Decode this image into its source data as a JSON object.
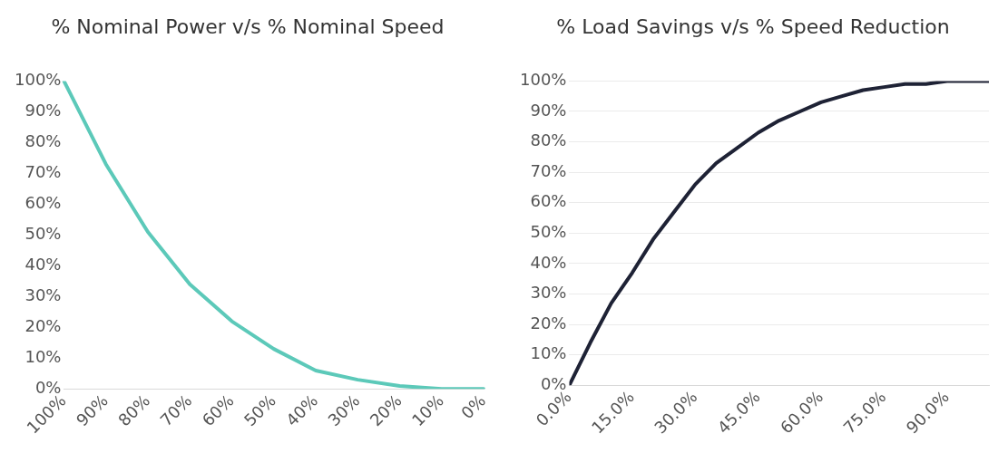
{
  "chart_data": [
    {
      "type": "line",
      "title": "% Nominal Power v/s % Nominal Speed",
      "categories": [
        "100%",
        "90%",
        "80%",
        "70%",
        "60%",
        "50%",
        "40%",
        "30%",
        "20%",
        "10%",
        "0%"
      ],
      "values": [
        100,
        73,
        51,
        34,
        22,
        13,
        6,
        3,
        1,
        0,
        0
      ],
      "color": "#5cc9b9",
      "ylim": [
        0,
        100
      ],
      "yticks": [
        {
          "value": 0,
          "label": "0%"
        },
        {
          "value": 10,
          "label": "10%"
        },
        {
          "value": 20,
          "label": "20%"
        },
        {
          "value": 30,
          "label": "30%"
        },
        {
          "value": 40,
          "label": "40%"
        },
        {
          "value": 50,
          "label": "50%"
        },
        {
          "value": 60,
          "label": "60%"
        },
        {
          "value": 70,
          "label": "70%"
        },
        {
          "value": 80,
          "label": "80%"
        },
        {
          "value": 90,
          "label": "90%"
        },
        {
          "value": 100,
          "label": "100%"
        }
      ],
      "grid": false,
      "marker": "none"
    },
    {
      "type": "line",
      "title": "% Load Savings v/s % Speed Reduction",
      "x": [
        0,
        5,
        10,
        15,
        20,
        25,
        30,
        35,
        40,
        45,
        50,
        55,
        60,
        65,
        70,
        75,
        80,
        85,
        90,
        95,
        100
      ],
      "values": [
        0,
        14,
        27,
        37,
        48,
        57,
        66,
        73,
        78,
        83,
        87,
        90,
        93,
        95,
        97,
        98,
        99,
        99,
        100,
        100,
        100
      ],
      "color": "#1e2235",
      "xlim": [
        0,
        100
      ],
      "xticks": [
        {
          "value": 0,
          "label": "0.0%"
        },
        {
          "value": 15,
          "label": "15.0%"
        },
        {
          "value": 30,
          "label": "30.0%"
        },
        {
          "value": 45,
          "label": "45.0%"
        },
        {
          "value": 60,
          "label": "60.0%"
        },
        {
          "value": 75,
          "label": "75.0%"
        },
        {
          "value": 90,
          "label": "90.0%"
        }
      ],
      "ylim": [
        0,
        100
      ],
      "yticks": [
        {
          "value": 0,
          "label": "0%"
        },
        {
          "value": 10,
          "label": "10%"
        },
        {
          "value": 20,
          "label": "20%"
        },
        {
          "value": 30,
          "label": "30%"
        },
        {
          "value": 40,
          "label": "40%"
        },
        {
          "value": 50,
          "label": "50%"
        },
        {
          "value": 60,
          "label": "60%"
        },
        {
          "value": 70,
          "label": "70%"
        },
        {
          "value": 80,
          "label": "80%"
        },
        {
          "value": 90,
          "label": "90%"
        },
        {
          "value": 100,
          "label": "100%"
        }
      ],
      "grid": "y",
      "marker": "none"
    }
  ]
}
